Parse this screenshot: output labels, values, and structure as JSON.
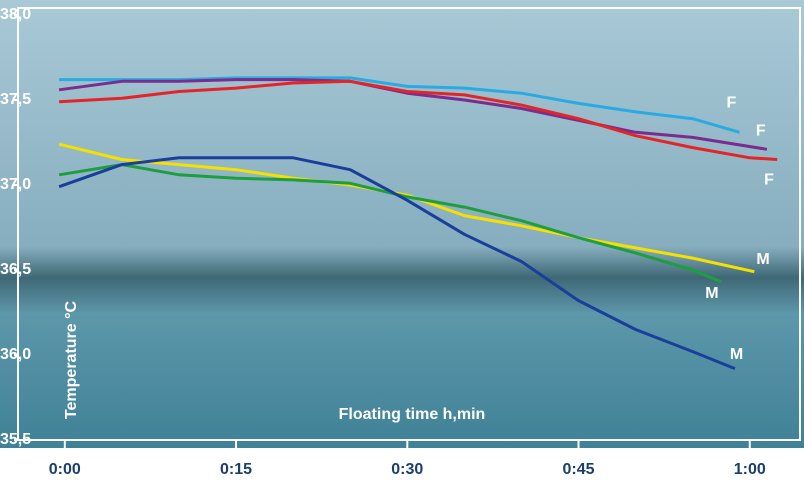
{
  "chart_data": {
    "type": "line",
    "x_label": "Floating time h,min",
    "y_label": "Temperature °C",
    "xlim": [
      -4.1,
      64.4
    ],
    "ylim": [
      35.5,
      38.0
    ],
    "xticks": [
      {
        "value": 0,
        "label": "0:00"
      },
      {
        "value": 15,
        "label": "0:15"
      },
      {
        "value": 30,
        "label": "0:30"
      },
      {
        "value": 45,
        "label": "0:45"
      },
      {
        "value": 60,
        "label": "1:00"
      }
    ],
    "yticks": [
      {
        "value": 35.5,
        "label": "35,5"
      },
      {
        "value": 36.0,
        "label": "36,0"
      },
      {
        "value": 36.5,
        "label": "36,5"
      },
      {
        "value": 37.0,
        "label": "37,0"
      },
      {
        "value": 37.5,
        "label": "37,5"
      },
      {
        "value": 38.0,
        "label": "38,0"
      }
    ],
    "series": [
      {
        "name": "F",
        "color": "#29abe2",
        "x": [
          -0.5,
          5,
          10,
          15,
          20,
          25,
          30,
          35,
          40,
          45,
          50,
          55,
          59.1
        ],
        "values": [
          37.62,
          37.62,
          37.62,
          37.63,
          37.63,
          37.63,
          37.58,
          37.57,
          37.54,
          37.48,
          37.43,
          37.39,
          37.31
        ]
      },
      {
        "name": "F",
        "color": "#7b2d8e",
        "x": [
          -0.5,
          5,
          10,
          15,
          20,
          25,
          30,
          35,
          40,
          45,
          50,
          55,
          61.5
        ],
        "values": [
          37.56,
          37.61,
          37.61,
          37.62,
          37.62,
          37.61,
          37.54,
          37.5,
          37.45,
          37.38,
          37.31,
          37.28,
          37.21
        ]
      },
      {
        "name": "F",
        "color": "#e32526",
        "x": [
          -0.5,
          5,
          10,
          15,
          20,
          25,
          30,
          35,
          40,
          45,
          50,
          55,
          60,
          62.4
        ],
        "values": [
          37.49,
          37.51,
          37.55,
          37.57,
          37.6,
          37.61,
          37.55,
          37.53,
          37.47,
          37.39,
          37.29,
          37.22,
          37.16,
          37.15
        ]
      },
      {
        "name": "M",
        "color": "#f5e000",
        "x": [
          -0.5,
          5,
          10,
          15,
          20,
          25,
          30,
          35,
          40,
          45,
          50,
          55,
          60.4
        ],
        "values": [
          37.24,
          37.15,
          37.12,
          37.09,
          37.04,
          37.0,
          36.94,
          36.82,
          36.76,
          36.69,
          36.63,
          36.57,
          36.49
        ]
      },
      {
        "name": "M",
        "color": "#1e9e3e",
        "x": [
          -0.5,
          5,
          10,
          15,
          20,
          25,
          30,
          35,
          40,
          45,
          50,
          55,
          57.5
        ],
        "values": [
          37.06,
          37.12,
          37.06,
          37.04,
          37.03,
          37.01,
          36.93,
          36.87,
          36.79,
          36.69,
          36.6,
          36.5,
          36.43
        ]
      },
      {
        "name": "M",
        "color": "#1a3f9b",
        "x": [
          -0.5,
          5,
          10,
          15,
          20,
          25,
          30,
          35,
          40,
          45,
          50,
          55,
          58.7
        ],
        "values": [
          36.99,
          37.12,
          37.16,
          37.16,
          37.16,
          37.09,
          36.91,
          36.71,
          36.55,
          36.32,
          36.15,
          36.02,
          35.92
        ]
      }
    ]
  }
}
